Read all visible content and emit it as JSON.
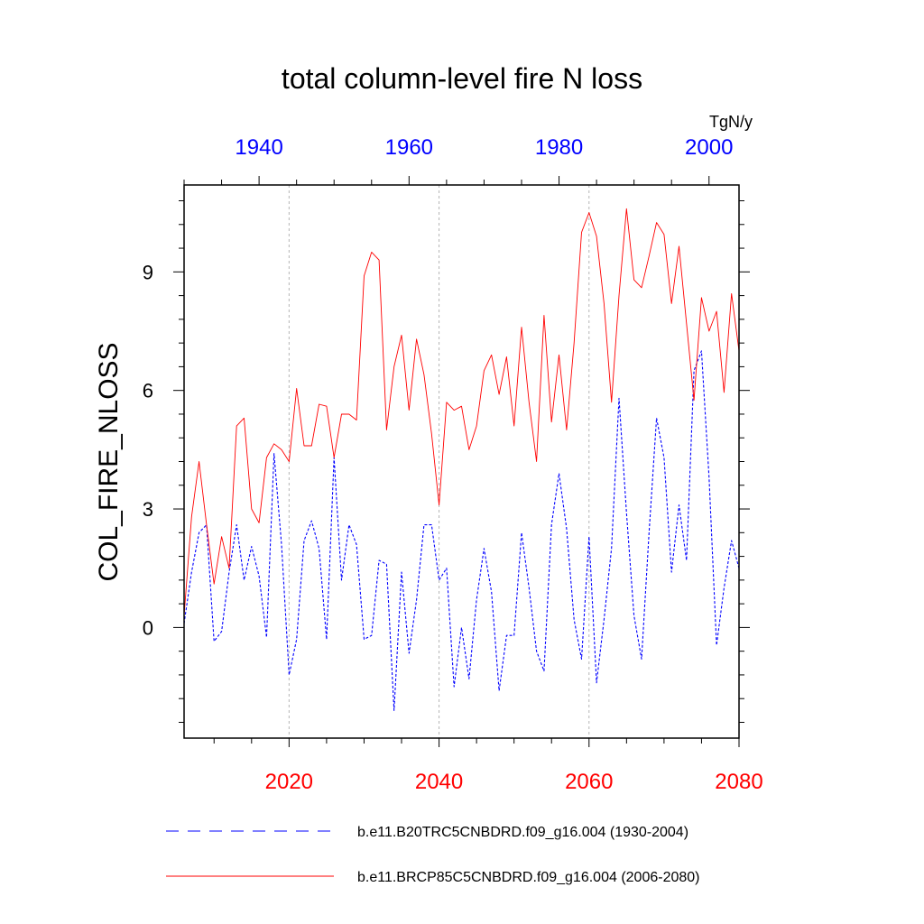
{
  "chart_data": {
    "type": "line",
    "title": "total column-level fire N loss",
    "ylabel": "COL_FIRE_NLOSS",
    "units": "TgN/y",
    "ylim": [
      -2.8,
      11.2
    ],
    "yticks": [
      0,
      3,
      6,
      9
    ],
    "grid": "vertical dotted at major bottom-axis ticks",
    "bottom_axis": {
      "color": "#ff0000",
      "range": [
        2006,
        2080
      ],
      "ticks": [
        2020,
        2040,
        2060,
        2080
      ],
      "tick_labels": [
        "2020",
        "2040",
        "2060",
        "2080"
      ]
    },
    "top_axis": {
      "color": "#0000ff",
      "range": [
        1930,
        2004
      ],
      "ticks": [
        1940,
        1960,
        1980,
        2000
      ],
      "tick_labels": [
        "1940",
        "1960",
        "1980",
        "2000"
      ]
    },
    "legend_position": "bottom",
    "series": [
      {
        "name": "b.e11.B20TRC5CNBDRD.f09_g16.004 (1930-2004)",
        "color": "#0000ff",
        "style": "dashed",
        "axis": "top",
        "x_start": 1930,
        "values": [
          0.1,
          1.4,
          2.4,
          2.6,
          -0.35,
          -0.1,
          1.4,
          2.6,
          1.2,
          2.05,
          1.3,
          -0.25,
          4.4,
          2.1,
          -1.2,
          -0.3,
          2.2,
          2.7,
          2.0,
          -0.3,
          4.3,
          1.2,
          2.6,
          2.1,
          -0.3,
          -0.2,
          1.7,
          1.6,
          -2.1,
          1.4,
          -0.65,
          0.7,
          2.6,
          2.6,
          1.2,
          1.5,
          -1.5,
          0.0,
          -1.3,
          0.7,
          2.0,
          0.9,
          -1.6,
          -0.2,
          -0.2,
          2.4,
          1.0,
          -0.6,
          -1.1,
          2.6,
          3.9,
          2.5,
          0.2,
          -0.8,
          2.3,
          -1.4,
          0.2,
          2.0,
          5.8,
          2.9,
          0.3,
          -0.8,
          2.4,
          5.3,
          4.3,
          1.4,
          3.1,
          1.7,
          6.5,
          7.0,
          3.8,
          -0.45,
          1.0,
          2.2,
          1.5
        ]
      },
      {
        "name": "b.e11.BRCP85C5CNBDRD.f09_g16.004 (2006-2080)",
        "color": "#ff0000",
        "style": "solid",
        "axis": "bottom",
        "x_start": 2006,
        "values": [
          0.3,
          2.8,
          4.2,
          2.6,
          1.1,
          2.3,
          1.5,
          5.1,
          5.3,
          3.0,
          2.65,
          4.3,
          4.65,
          4.5,
          4.2,
          6.05,
          4.6,
          4.6,
          5.65,
          5.6,
          4.3,
          5.4,
          5.4,
          5.25,
          8.9,
          9.5,
          9.3,
          5.0,
          6.6,
          7.4,
          5.5,
          7.3,
          6.4,
          4.9,
          3.1,
          5.7,
          5.5,
          5.6,
          4.5,
          5.1,
          6.5,
          6.9,
          5.9,
          6.85,
          5.1,
          7.6,
          5.7,
          4.2,
          7.9,
          5.2,
          6.9,
          5.0,
          7.2,
          10.0,
          10.5,
          9.9,
          8.2,
          5.7,
          8.4,
          10.6,
          8.8,
          8.6,
          9.4,
          10.25,
          9.95,
          8.2,
          9.65,
          7.7,
          5.75,
          8.35,
          7.5,
          8.0,
          5.95,
          8.45,
          7.0
        ]
      }
    ]
  }
}
